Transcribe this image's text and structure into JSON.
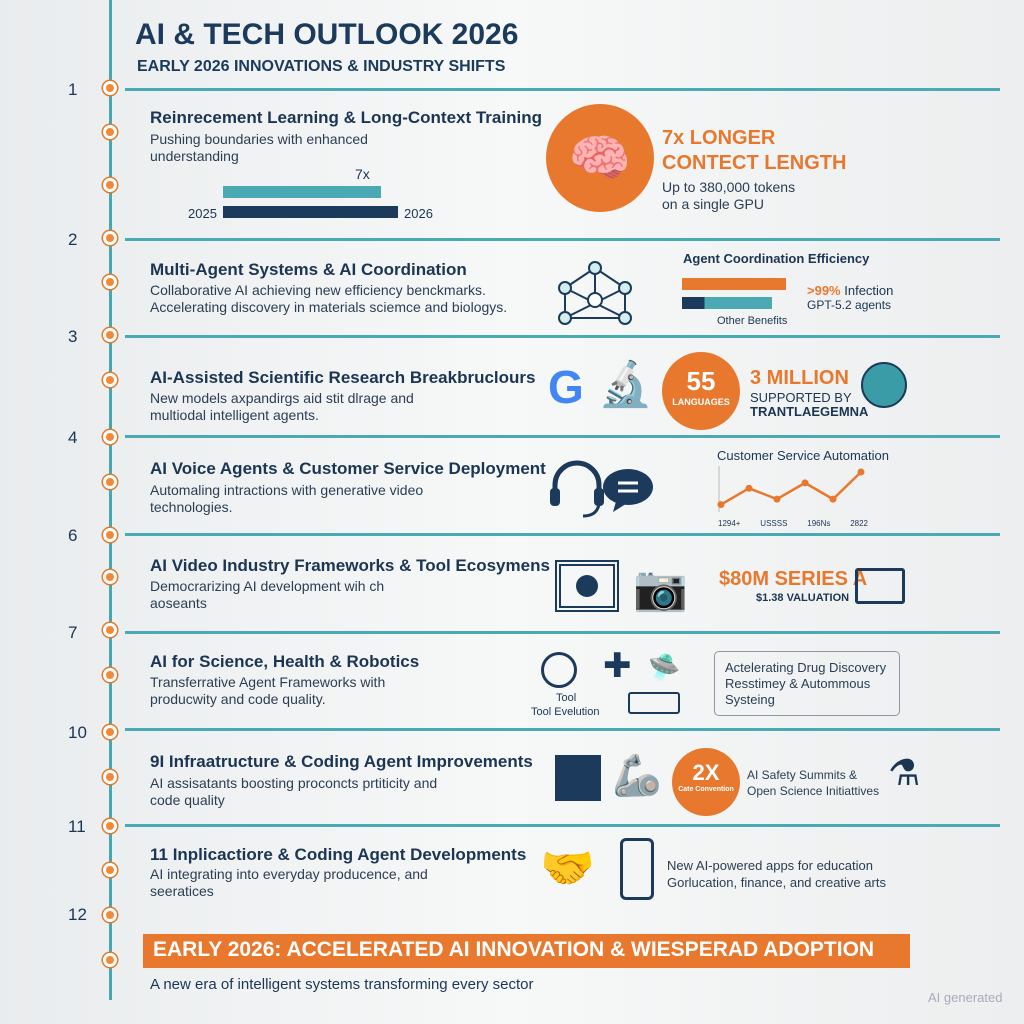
{
  "header": {
    "title": "AI & TECH OUTLOOK 2026",
    "subtitle": "EARLY 2026 INNOVATIONS & INDUSTRY SHIFTS"
  },
  "section_numbers": [
    "1",
    "2",
    "3",
    "4",
    "6",
    "7",
    "10",
    "11",
    "12"
  ],
  "sections": [
    {
      "title": "Reinrecement Learning & Long-Context Training",
      "desc": [
        "Pushing boundaries with enhanced",
        "understanding"
      ],
      "bar_label": "7x",
      "bar_start": "2025",
      "bar_end": "2026",
      "stat": "7x LONGER",
      "stat2": "CONTECT LENGTH",
      "stat_desc": [
        "Up to 380,000 tokens",
        "on a single GPU"
      ]
    },
    {
      "title": "Multi-Agent Systems & AI Coordination",
      "desc": [
        "Collaborative AI achieving new efficiency benckmarks.",
        "Accelerating discovery in materials sciemce and biologys."
      ],
      "chart_title": "Agent Coordination Efficiency",
      "stat": ">99%",
      "stat_suffix": "Infection",
      "stat_desc": "GPT-5.2 agents",
      "bar_caption": "Other Benefits"
    },
    {
      "title": "AI-Assisted Scientific Research Breakbruclours",
      "desc": [
        "New models axpandirgs aid stit dlrage and",
        "multiodal intelligent agents."
      ],
      "circle_num": "55",
      "circle_label": "LANGUAGES",
      "stat": "3 MILLION",
      "stat_desc": "SUPPORTED BY",
      "stat_desc2": "TRANTLAEGEMNA"
    },
    {
      "title": "AI Voice Agents & Customer Service Deployment",
      "desc": [
        "Automaling intractions with generative video",
        "technologies."
      ],
      "chart_title": "Customer Service Automation",
      "x_labels": [
        "1294+",
        "USSSS",
        "196Ns",
        "2822"
      ]
    },
    {
      "title": "AI Video Industry Frameworks & Tool Ecosymens",
      "desc": [
        "Democrarizing AI development wih ch",
        "aoseants"
      ],
      "stat": "$80M SERIES A",
      "stat_desc": "$1.38 VALUATION"
    },
    {
      "title": "AI for Science, Health & Robotics",
      "desc": [
        "Transferrative Agent Frameworks with",
        "producwity and code quality."
      ],
      "tool_label": "Tool",
      "tool_label2": "Tool Evelution",
      "box": [
        "Actelerating Drug Discovery",
        "Resstimey & Autommous",
        "Systeing"
      ]
    },
    {
      "title": "9I Infraatructure & Coding Agent Improvements",
      "desc": [
        "AI assisatants boosting proconcts prtiticity and",
        "code quality"
      ],
      "circle_num": "2X",
      "circle_label": "Cate Convention",
      "stat_desc": [
        "AI Safety Summits &",
        "Open Science Initiattives"
      ]
    },
    {
      "title": "11 Inplicactiore & Coding Agent Developments",
      "desc": [
        "AI integrating into everyday producence, and",
        "seeratices"
      ],
      "stat_desc": [
        "New AI-powered apps for education",
        "Gorlucation, finance, and creative arts"
      ]
    }
  ],
  "footer": {
    "banner": "EARLY 2026: ACCELERATED AI INNOVATION & WIESPERAD ADOPTION",
    "tagline": "A new era of intelligent systems transforming every sector",
    "watermark": "AI generated"
  },
  "chart_data": {
    "type": "line",
    "title": "Customer Service Automation",
    "values": [
      1,
      4,
      2,
      5,
      2,
      7
    ]
  },
  "colors": {
    "teal": "#4aa9b3",
    "orange": "#e8782e",
    "navy": "#1b3a5c"
  }
}
